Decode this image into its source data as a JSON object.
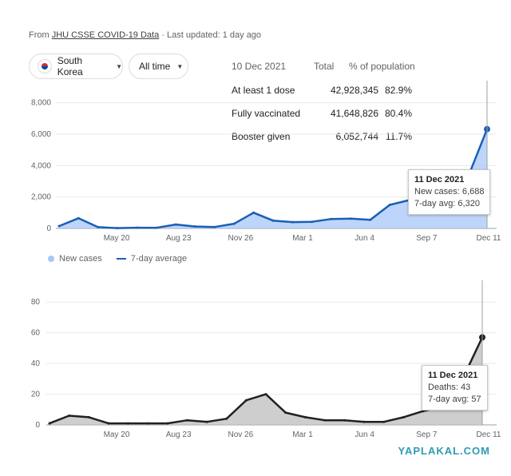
{
  "source": {
    "prefix": "From",
    "link": "JHU CSSE COVID-19 Data",
    "suffix": "· Last updated: 1 day ago"
  },
  "filters": {
    "country": "South Korea",
    "range": "All time"
  },
  "vaccination": {
    "date": "10 Dec 2021",
    "total_header": "Total",
    "pct_header": "% of population",
    "rows": [
      {
        "label": "At least 1 dose",
        "total": "42,928,345",
        "pct": "82.9%"
      },
      {
        "label": "Fully vaccinated",
        "total": "41,648,826",
        "pct": "80.4%"
      },
      {
        "label": "Booster given",
        "total": "6,052,744",
        "pct": "11.7%"
      }
    ]
  },
  "legend": {
    "new_cases": "New cases",
    "avg": "7-day average"
  },
  "tooltip_cases": {
    "date": "11 Dec 2021",
    "line1": "New cases: 6,688",
    "line2": "7-day avg: 6,320"
  },
  "tooltip_deaths": {
    "date": "11 Dec 2021",
    "line1": "Deaths: 43",
    "line2": "7-day avg: 57"
  },
  "watermark": "YAPLAKAL.COM",
  "colors": {
    "cases_bar": "#a8c7fa",
    "cases_line": "#1a5fb4",
    "deaths_bar": "#bdbdbd",
    "deaths_line": "#202124"
  },
  "chart_data": [
    {
      "type": "area",
      "title": "",
      "x_ticks": [
        "May 20",
        "Aug 23",
        "Nov 26",
        "Mar 1",
        "Jun 4",
        "Sep 7",
        "Dec 11"
      ],
      "x": [
        "Feb 2020",
        "Mar 2020",
        "Apr 2020",
        "May 2020",
        "Jun 2020",
        "Jul 2020",
        "Aug 2020",
        "Sep 2020",
        "Oct 2020",
        "Nov 2020",
        "Dec 2020",
        "Jan 2021",
        "Feb 2021",
        "Mar 2021",
        "Apr 2021",
        "May 2021",
        "Jun 2021",
        "Jul 2021",
        "Aug 2021",
        "Sep 2021",
        "Oct 2021",
        "Nov 2021",
        "Dec 2021"
      ],
      "series": [
        {
          "name": "7-day average",
          "values": [
            150,
            650,
            80,
            20,
            45,
            40,
            250,
            120,
            90,
            300,
            1000,
            500,
            400,
            420,
            600,
            620,
            550,
            1500,
            1800,
            2000,
            1700,
            3200,
            6320
          ]
        }
      ],
      "yticks": [
        0,
        2000,
        4000,
        6000,
        8000
      ],
      "ylim": [
        0,
        9000
      ],
      "grid": true
    },
    {
      "type": "area",
      "title": "",
      "x_ticks": [
        "May 20",
        "Aug 23",
        "Nov 26",
        "Mar 1",
        "Jun 4",
        "Sep 7",
        "Dec 11"
      ],
      "x": [
        "Feb 2020",
        "Mar 2020",
        "Apr 2020",
        "May 2020",
        "Jun 2020",
        "Jul 2020",
        "Aug 2020",
        "Sep 2020",
        "Oct 2020",
        "Nov 2020",
        "Dec 2020",
        "Jan 2021",
        "Feb 2021",
        "Mar 2021",
        "Apr 2021",
        "May 2021",
        "Jun 2021",
        "Jul 2021",
        "Aug 2021",
        "Sep 2021",
        "Oct 2021",
        "Nov 2021",
        "Dec 2021"
      ],
      "series": [
        {
          "name": "7-day average",
          "values": [
            1,
            6,
            5,
            1,
            1,
            1,
            1,
            3,
            2,
            4,
            16,
            20,
            8,
            5,
            3,
            3,
            2,
            2,
            5,
            9,
            12,
            30,
            57
          ]
        }
      ],
      "yticks": [
        0,
        20,
        40,
        60,
        80
      ],
      "ylim": [
        0,
        90
      ],
      "grid": true
    }
  ]
}
